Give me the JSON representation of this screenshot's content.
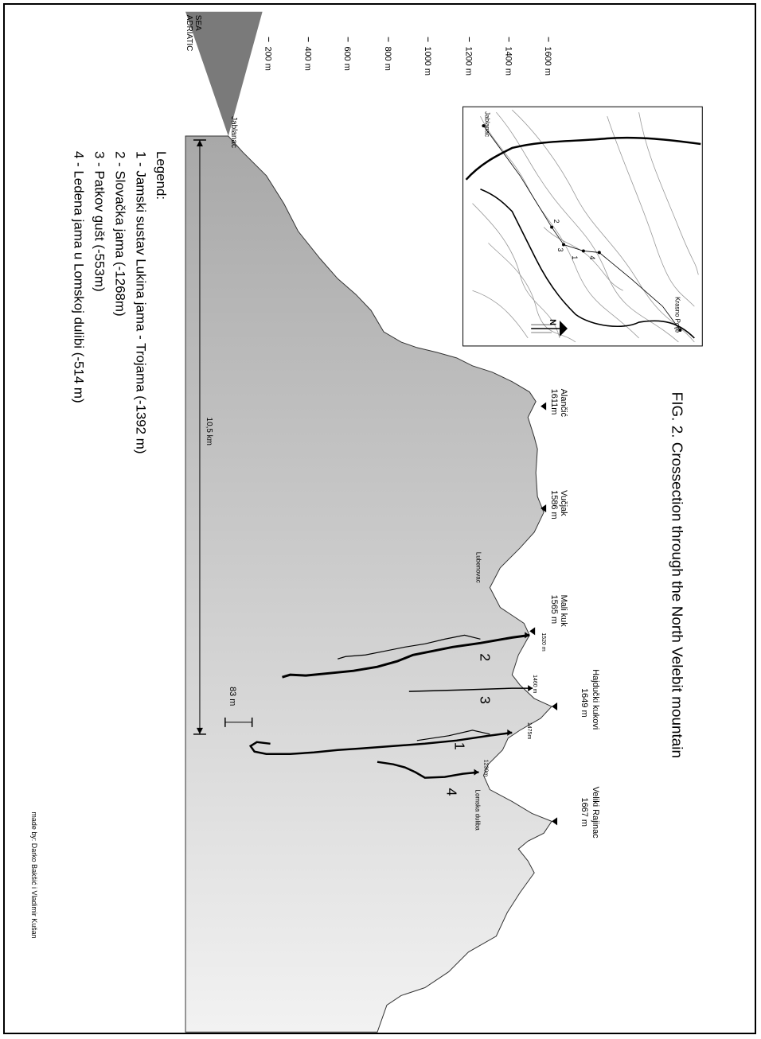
{
  "title": "FIG. 2. Crossection through the North Velebit mountain",
  "sea_label_line1": "ADRIATIC",
  "sea_label_line2": "SEA",
  "scale": {
    "axis_ticks": [
      "200 m",
      "400 m",
      "600 m",
      "800 m",
      "1000 m",
      "1200 m",
      "1400 m",
      "1600 m"
    ],
    "distance_label": "10,5 km",
    "small_height_label": "83 m"
  },
  "places": {
    "jablanac": "Jablanac",
    "alancic_name": "Alančić",
    "alancic_alt": "1611m",
    "vucjak_name": "Vučjak",
    "vucjak_alt": "1586 m",
    "lubenovac": "Lubenovac",
    "mali_kuk_name": "Mali kuk",
    "mali_kuk_alt": "1565 m",
    "hajducki_name": "Hajdučki kukovi",
    "hajducki_alt": "1649 m",
    "veliki_name": "Veliki Rajinac",
    "veliki_alt": "1667 m",
    "lomska": "Lomska duliba"
  },
  "entrances": {
    "e2": "1520 m",
    "e3": "1460 m",
    "e1": "1475m",
    "e4": "1230m"
  },
  "cave_numbers": [
    "1",
    "2",
    "3",
    "4"
  ],
  "map": {
    "jablanac": "Jablanac",
    "krasno": "Krasno Polje",
    "north": "N",
    "points": [
      "1",
      "2",
      "3",
      "4"
    ]
  },
  "legend": {
    "title": "Legend:",
    "items": [
      "1 - Jamski sustav Lukina jama - Trojama (-1392 m)",
      "2 - Slovačka jama (-1268m)",
      "3 - Patkov gušt (-553m)",
      "4 - Ledena jama u Lomskoj dulibi (-514 m)"
    ]
  },
  "credit": "made by: Darko Bakšić i Vladimir Kušan"
}
